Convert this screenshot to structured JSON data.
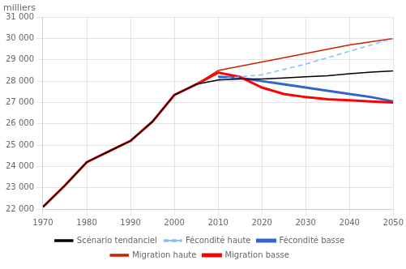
{
  "chart_data": {
    "type": "line",
    "ylabel": "milliers",
    "x": [
      1970,
      1975,
      1980,
      1985,
      1990,
      1995,
      2000,
      2005,
      2010,
      2015,
      2020,
      2025,
      2030,
      2035,
      2040,
      2045,
      2050
    ],
    "series": [
      {
        "name": "Scénario tendanciel",
        "color": "#000000",
        "line_style": "solid",
        "values": [
          22100,
          23100,
          24200,
          24700,
          25200,
          26100,
          27350,
          27850,
          28050,
          28100,
          28100,
          28150,
          28200,
          28250,
          28350,
          28420,
          28480
        ]
      },
      {
        "name": "Fécondité haute",
        "color": "#88bbff",
        "line_style": "dashed",
        "values": [
          null,
          null,
          null,
          null,
          null,
          null,
          null,
          null,
          28100,
          28200,
          28300,
          28550,
          28800,
          29100,
          29400,
          29700,
          30000
        ]
      },
      {
        "name": "Fécondité basse",
        "color": "#3366cc",
        "line_style": "solid",
        "values": [
          null,
          null,
          null,
          null,
          null,
          null,
          null,
          null,
          28200,
          28150,
          28000,
          27850,
          27700,
          27550,
          27400,
          27250,
          27050
        ]
      },
      {
        "name": "Migration haute",
        "color": "#cc2200",
        "line_style": "solid",
        "values": [
          22100,
          23100,
          24200,
          24700,
          25200,
          26100,
          27350,
          27850,
          28500,
          28700,
          28900,
          29100,
          29300,
          29500,
          29700,
          29850,
          30000
        ]
      },
      {
        "name": "Migration basse",
        "color": "#ff0000",
        "line_style": "solid",
        "values": [
          22100,
          23100,
          24200,
          24700,
          25200,
          26100,
          27350,
          27850,
          28400,
          28200,
          27700,
          27400,
          27250,
          27150,
          27100,
          27050,
          27000
        ]
      }
    ],
    "xlim": [
      1970,
      2050
    ],
    "ylim": [
      22000,
      31000
    ],
    "xticks": [
      1970,
      1980,
      1990,
      2000,
      2010,
      2020,
      2030,
      2040,
      2050
    ],
    "yticks": [
      {
        "value": 22000,
        "label": "22 000"
      },
      {
        "value": 23000,
        "label": "23 000"
      },
      {
        "value": 24000,
        "label": "24 000"
      },
      {
        "value": 25000,
        "label": "25 000"
      },
      {
        "value": 26000,
        "label": "26 000"
      },
      {
        "value": 27000,
        "label": "27 000"
      },
      {
        "value": 28000,
        "label": "28 000"
      },
      {
        "value": 29000,
        "label": "29 000"
      },
      {
        "value": 30000,
        "label": "30 000"
      },
      {
        "value": 31000,
        "label": "31 000"
      }
    ],
    "grid": true,
    "legend": "bottom"
  }
}
